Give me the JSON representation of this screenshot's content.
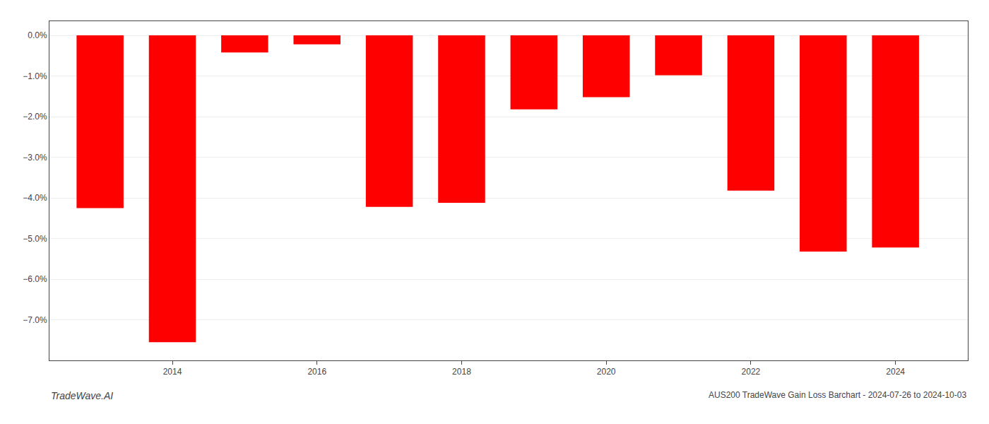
{
  "chart_data": {
    "type": "bar",
    "title": "AUS200 TradeWave Gain Loss Barchart - 2024-07-26 to 2024-10-03",
    "annotations": [
      "TradeWave.AI"
    ],
    "x": [
      2013,
      2014,
      2015,
      2016,
      2017,
      2018,
      2019,
      2020,
      2021,
      2022,
      2023,
      2024
    ],
    "values": [
      -4.25,
      -7.55,
      -0.42,
      -0.22,
      -4.22,
      -4.12,
      -1.82,
      -1.52,
      -0.98,
      -3.82,
      -5.32,
      -5.22
    ],
    "color": "#ff0000",
    "xlim": [
      2012.3,
      2025.0
    ],
    "xticks": [
      2014,
      2016,
      2018,
      2020,
      2022,
      2024
    ],
    "ylim": [
      -8.0,
      0.35
    ],
    "yticks": [
      {
        "value": 0.0,
        "label": "0.0%"
      },
      {
        "value": -1.0,
        "label": "−1.0%"
      },
      {
        "value": -2.0,
        "label": "−2.0%"
      },
      {
        "value": -3.0,
        "label": "−3.0%"
      },
      {
        "value": -4.0,
        "label": "−4.0%"
      },
      {
        "value": -5.0,
        "label": "−5.0%"
      },
      {
        "value": -6.0,
        "label": "−6.0%"
      },
      {
        "value": -7.0,
        "label": "−7.0%"
      }
    ],
    "grid": true
  }
}
